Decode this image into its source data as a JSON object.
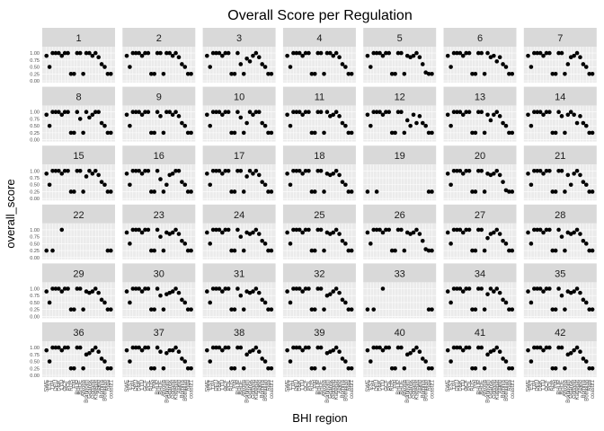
{
  "chart_data": {
    "type": "scatter",
    "title": "Overall Score per Regulation",
    "xlabel": "BHI region",
    "ylabel": "overall_score",
    "ylim": [
      0,
      1.1
    ],
    "yticks": [
      "0.00",
      "0.25",
      "0.50",
      "0.75",
      "1.00"
    ],
    "x_categories": [
      "SWE",
      "EST",
      "LVA",
      "DEU",
      "DNK",
      "LTU",
      "GCF",
      "POL",
      "RUS",
      "FIN",
      "BHUP",
      "BHUE",
      "Arkona",
      "Bornholm",
      "Gdansk",
      "Gotland",
      "Kattegat",
      "Aland",
      "Bothnia",
      "Bothnian",
      "Riga",
      "coast21"
    ],
    "grid": true,
    "facets": [
      {
        "label": "1",
        "values": [
          0.9,
          0.5,
          1,
          1,
          1,
          0.9,
          1,
          1,
          0.25,
          0.25,
          1,
          1,
          0.25,
          1,
          1,
          0.9,
          1,
          0.85,
          0.6,
          0.5,
          0.25,
          0.25
        ]
      },
      {
        "label": "2",
        "values": [
          0.9,
          0.5,
          1,
          1,
          1,
          0.9,
          1,
          1,
          0.25,
          0.25,
          1,
          1,
          0.25,
          1,
          1,
          0.9,
          1,
          0.85,
          0.6,
          0.5,
          0.25,
          0.25
        ]
      },
      {
        "label": "3",
        "values": [
          0.9,
          0.5,
          1,
          1,
          1,
          0.9,
          1,
          1,
          0.25,
          0.25,
          1,
          0.6,
          0.25,
          0.8,
          0.7,
          0.9,
          1,
          0.85,
          0.6,
          0.5,
          0.25,
          0.25
        ]
      },
      {
        "label": "4",
        "values": [
          0.9,
          0.5,
          1,
          1,
          1,
          0.9,
          1,
          1,
          0.25,
          0.25,
          1,
          1,
          0.25,
          1,
          1,
          0.9,
          1,
          0.85,
          0.6,
          0.5,
          0.25,
          0.25
        ]
      },
      {
        "label": "5",
        "values": [
          0.9,
          0.5,
          1,
          1,
          1,
          0.9,
          1,
          1,
          0.25,
          0.25,
          1,
          1,
          0.25,
          0.9,
          0.85,
          0.9,
          1,
          0.85,
          0.6,
          0.3,
          0.25,
          0.25
        ]
      },
      {
        "label": "6",
        "values": [
          0.9,
          0.5,
          1,
          1,
          1,
          0.9,
          1,
          1,
          0.25,
          0.25,
          1,
          1,
          0.25,
          1,
          0.85,
          0.9,
          0.7,
          0.85,
          0.6,
          0.5,
          0.25,
          0.25
        ]
      },
      {
        "label": "7",
        "values": [
          0.9,
          0.5,
          1,
          1,
          1,
          0.9,
          1,
          1,
          0.25,
          0.25,
          1,
          1,
          0.25,
          0.6,
          0.85,
          0.9,
          1,
          0.85,
          0.6,
          0.5,
          0.25,
          0.25
        ]
      },
      {
        "label": "8",
        "values": [
          0.9,
          0.5,
          1,
          1,
          1,
          0.9,
          1,
          1,
          0.25,
          0.25,
          1,
          0.75,
          0.25,
          1,
          0.8,
          0.9,
          1,
          1,
          0.6,
          0.5,
          0.25,
          0.25
        ]
      },
      {
        "label": "9",
        "values": [
          0.9,
          0.5,
          1,
          1,
          1,
          0.9,
          1,
          1,
          0.25,
          0.25,
          1,
          0.85,
          0.25,
          1,
          1,
          0.9,
          1,
          0.85,
          0.6,
          0.5,
          0.25,
          0.25
        ]
      },
      {
        "label": "10",
        "values": [
          0.9,
          0.5,
          1,
          1,
          1,
          0.9,
          1,
          1,
          0.25,
          0.25,
          1,
          0.8,
          0.25,
          0.6,
          1,
          0.9,
          1,
          1,
          0.6,
          0.5,
          0.25,
          0.25
        ]
      },
      {
        "label": "11",
        "values": [
          0.9,
          0.5,
          1,
          1,
          1,
          0.9,
          1,
          1,
          0.25,
          0.25,
          1,
          1,
          0.25,
          1,
          0.85,
          0.9,
          1,
          0.85,
          0.6,
          0.5,
          0.25,
          0.25
        ]
      },
      {
        "label": "12",
        "values": [
          0.9,
          0.5,
          1,
          1,
          1,
          0.9,
          1,
          1,
          0.25,
          0.25,
          1,
          1,
          0.25,
          0.7,
          0.5,
          0.9,
          0.6,
          0.85,
          0.6,
          0.5,
          0.25,
          0.25
        ]
      },
      {
        "label": "13",
        "values": [
          0.9,
          0.5,
          1,
          1,
          1,
          0.9,
          1,
          1,
          0.25,
          0.25,
          1,
          1,
          0.25,
          0.9,
          0.7,
          0.9,
          1,
          0.85,
          0.6,
          0.5,
          0.25,
          0.25
        ]
      },
      {
        "label": "14",
        "values": [
          0.9,
          0.5,
          1,
          1,
          1,
          0.9,
          1,
          1,
          0.25,
          0.25,
          1,
          0.85,
          0.25,
          0.9,
          1,
          0.9,
          0.6,
          0.85,
          0.6,
          0.5,
          0.25,
          0.25
        ]
      },
      {
        "label": "15",
        "values": [
          0.9,
          0.5,
          1,
          1,
          1,
          0.9,
          1,
          1,
          0.25,
          0.25,
          1,
          1,
          0.25,
          0.8,
          1,
          0.9,
          1,
          0.85,
          0.6,
          0.5,
          0.25,
          0.25
        ]
      },
      {
        "label": "16",
        "values": [
          0.9,
          0.5,
          1,
          1,
          1,
          0.9,
          1,
          1,
          0.25,
          0.25,
          1,
          0.7,
          0.25,
          0.5,
          0.85,
          0.9,
          1,
          1,
          0.6,
          0.5,
          0.25,
          0.25
        ]
      },
      {
        "label": "17",
        "values": [
          0.9,
          0.5,
          1,
          1,
          1,
          0.9,
          1,
          1,
          0.25,
          0.25,
          1,
          1,
          0.25,
          0.8,
          1,
          0.9,
          1,
          0.85,
          0.6,
          0.5,
          0.25,
          0.25
        ]
      },
      {
        "label": "18",
        "values": [
          0.9,
          0.5,
          1,
          1,
          1,
          0.9,
          1,
          1,
          0.25,
          0.25,
          1,
          1,
          0.25,
          0.9,
          0.85,
          0.9,
          1,
          0.85,
          0.6,
          0.5,
          0.25,
          0.25
        ]
      },
      {
        "label": "19",
        "values": [
          0.25,
          null,
          null,
          0.25,
          null,
          null,
          null,
          null,
          null,
          null,
          null,
          null,
          null,
          null,
          null,
          null,
          null,
          null,
          null,
          null,
          0.25,
          0.25
        ]
      },
      {
        "label": "20",
        "values": [
          0.9,
          0.5,
          1,
          1,
          1,
          0.9,
          1,
          1,
          0.25,
          0.25,
          1,
          1,
          0.25,
          0.9,
          0.85,
          0.9,
          1,
          0.85,
          0.6,
          0.3,
          0.25,
          0.25
        ]
      },
      {
        "label": "21",
        "values": [
          0.9,
          0.5,
          1,
          1,
          1,
          0.9,
          1,
          1,
          0.25,
          0.25,
          1,
          1,
          0.25,
          0.85,
          0.5,
          0.9,
          1,
          0.85,
          0.6,
          0.5,
          0.25,
          0.25
        ]
      },
      {
        "label": "22",
        "values": [
          0.25,
          null,
          0.25,
          null,
          null,
          1,
          null,
          null,
          null,
          null,
          null,
          null,
          null,
          null,
          null,
          null,
          null,
          null,
          null,
          null,
          0.25,
          0.25
        ]
      },
      {
        "label": "23",
        "values": [
          0.9,
          0.5,
          1,
          1,
          1,
          0.9,
          1,
          1,
          0.25,
          0.25,
          1,
          0.75,
          0.25,
          0.9,
          0.85,
          0.9,
          1,
          0.85,
          0.6,
          0.5,
          0.25,
          0.25
        ]
      },
      {
        "label": "24",
        "values": [
          0.9,
          0.5,
          1,
          1,
          1,
          0.9,
          1,
          1,
          0.25,
          0.25,
          1,
          0.75,
          0.25,
          0.9,
          0.85,
          0.9,
          1,
          0.85,
          0.6,
          0.5,
          0.25,
          0.25
        ]
      },
      {
        "label": "25",
        "values": [
          0.9,
          0.5,
          1,
          1,
          1,
          0.9,
          1,
          1,
          0.25,
          0.25,
          1,
          1,
          0.25,
          0.9,
          0.85,
          0.9,
          1,
          0.85,
          0.6,
          0.5,
          0.25,
          0.25
        ]
      },
      {
        "label": "26",
        "values": [
          0.9,
          0.5,
          1,
          1,
          1,
          0.9,
          1,
          1,
          0.25,
          0.25,
          1,
          1,
          0.25,
          0.9,
          0.85,
          0.9,
          1,
          0.85,
          0.6,
          0.3,
          0.25,
          0.25
        ]
      },
      {
        "label": "27",
        "values": [
          0.9,
          0.5,
          1,
          1,
          1,
          0.9,
          1,
          1,
          0.25,
          0.25,
          1,
          1,
          0.25,
          0.7,
          0.85,
          0.9,
          1,
          0.85,
          0.6,
          0.5,
          0.25,
          0.25
        ]
      },
      {
        "label": "28",
        "values": [
          0.9,
          0.5,
          1,
          1,
          1,
          0.9,
          1,
          1,
          0.25,
          0.25,
          1,
          0.75,
          0.25,
          0.9,
          0.85,
          0.9,
          1,
          0.85,
          0.6,
          0.5,
          0.25,
          0.25
        ]
      },
      {
        "label": "29",
        "values": [
          0.9,
          0.5,
          1,
          1,
          1,
          0.9,
          1,
          1,
          0.25,
          0.25,
          1,
          1,
          0.25,
          0.9,
          0.85,
          0.9,
          1,
          0.85,
          0.6,
          0.5,
          0.25,
          0.25
        ]
      },
      {
        "label": "30",
        "values": [
          0.9,
          0.5,
          1,
          1,
          1,
          0.9,
          1,
          1,
          0.25,
          0.25,
          1,
          0.75,
          0.25,
          0.8,
          0.85,
          0.9,
          1,
          0.85,
          0.6,
          0.5,
          0.25,
          0.25
        ]
      },
      {
        "label": "31",
        "values": [
          0.9,
          0.5,
          1,
          1,
          1,
          0.9,
          1,
          1,
          0.25,
          0.25,
          1,
          0.75,
          0.25,
          0.9,
          0.85,
          0.9,
          1,
          0.85,
          0.6,
          0.5,
          0.25,
          0.25
        ]
      },
      {
        "label": "32",
        "values": [
          0.9,
          0.5,
          1,
          1,
          1,
          0.9,
          1,
          1,
          0.25,
          0.25,
          1,
          1,
          0.25,
          0.75,
          0.8,
          0.9,
          1,
          0.85,
          0.6,
          0.5,
          0.25,
          0.25
        ]
      },
      {
        "label": "33",
        "values": [
          0.25,
          null,
          0.25,
          null,
          null,
          1,
          null,
          null,
          null,
          null,
          null,
          null,
          null,
          null,
          null,
          null,
          null,
          null,
          null,
          null,
          0.25,
          0.25
        ]
      },
      {
        "label": "34",
        "values": [
          0.9,
          0.5,
          1,
          1,
          1,
          0.9,
          1,
          1,
          0.25,
          0.25,
          1,
          1,
          0.25,
          0.8,
          1,
          0.9,
          1,
          0.85,
          0.6,
          0.5,
          0.25,
          0.25
        ]
      },
      {
        "label": "35",
        "values": [
          0.9,
          0.5,
          1,
          1,
          1,
          0.9,
          1,
          1,
          0.25,
          0.25,
          1,
          0.75,
          0.25,
          0.9,
          0.85,
          0.9,
          1,
          0.85,
          0.6,
          0.5,
          0.25,
          0.25
        ]
      },
      {
        "label": "36",
        "values": [
          0.9,
          0.5,
          1,
          1,
          1,
          0.9,
          1,
          1,
          0.25,
          0.25,
          1,
          1,
          0.25,
          0.75,
          0.8,
          0.9,
          1,
          0.85,
          0.6,
          0.5,
          0.25,
          0.25
        ]
      },
      {
        "label": "37",
        "values": [
          0.9,
          0.5,
          1,
          1,
          1,
          0.9,
          1,
          1,
          0.25,
          0.25,
          1,
          0.85,
          0.25,
          0.8,
          0.9,
          0.9,
          1,
          0.85,
          0.6,
          0.5,
          0.25,
          0.25
        ]
      },
      {
        "label": "38",
        "values": [
          0.9,
          0.5,
          1,
          1,
          1,
          0.9,
          1,
          1,
          0.25,
          0.25,
          1,
          1,
          0.25,
          0.75,
          0.85,
          0.9,
          1,
          0.85,
          0.6,
          0.5,
          0.25,
          0.25
        ]
      },
      {
        "label": "39",
        "values": [
          0.9,
          0.5,
          1,
          1,
          1,
          0.9,
          1,
          1,
          0.25,
          0.25,
          1,
          1,
          0.25,
          0.8,
          0.85,
          0.9,
          1,
          0.85,
          0.6,
          0.5,
          0.25,
          0.25
        ]
      },
      {
        "label": "40",
        "values": [
          0.9,
          0.5,
          1,
          1,
          1,
          0.9,
          1,
          1,
          0.25,
          0.25,
          1,
          1,
          0.25,
          0.75,
          0.8,
          0.9,
          1,
          0.85,
          0.6,
          0.5,
          0.25,
          0.25
        ]
      },
      {
        "label": "41",
        "values": [
          0.9,
          0.5,
          1,
          1,
          1,
          0.9,
          1,
          1,
          0.25,
          0.25,
          1,
          1,
          0.25,
          0.75,
          0.85,
          0.9,
          1,
          0.85,
          0.6,
          0.5,
          0.25,
          0.25
        ]
      },
      {
        "label": "42",
        "values": [
          0.9,
          0.5,
          1,
          1,
          1,
          0.9,
          1,
          1,
          0.25,
          0.25,
          1,
          1,
          0.25,
          0.75,
          0.8,
          0.9,
          1,
          0.85,
          0.6,
          0.5,
          0.25,
          0.25
        ]
      }
    ]
  },
  "colors": {
    "panel_bg": "#ebebeb",
    "strip_bg": "#d9d9d9",
    "grid": "#ffffff",
    "point": "#000000"
  }
}
